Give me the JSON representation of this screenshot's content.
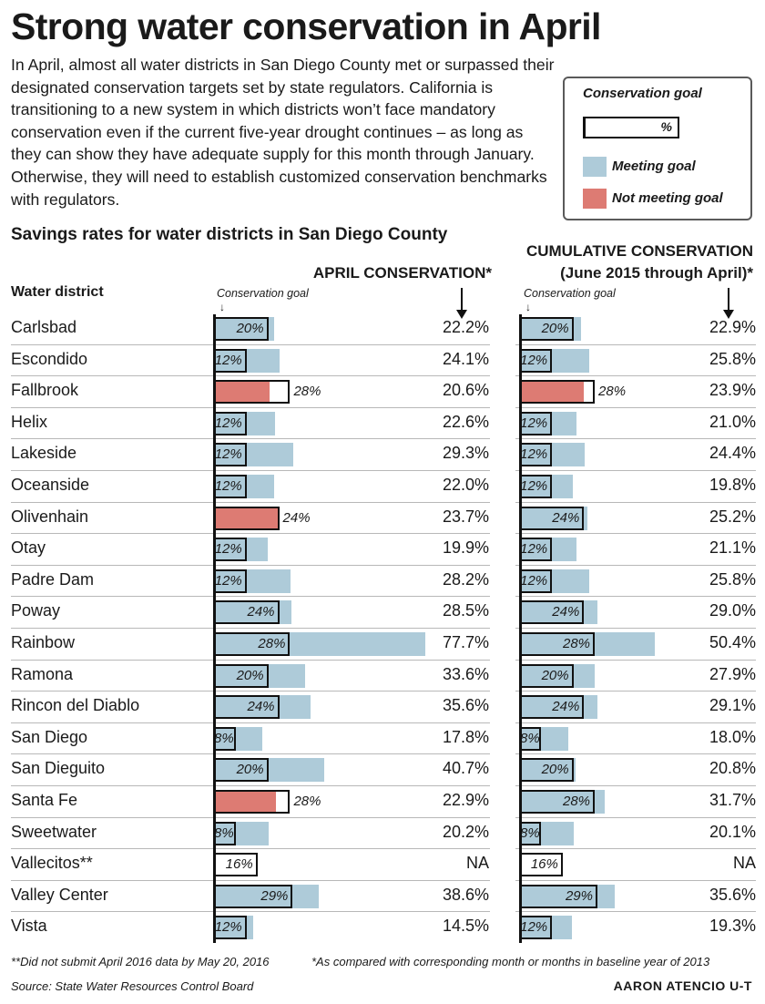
{
  "headline": "Strong water conservation in April",
  "intro": "In April, almost all water districts in San Diego County met or surpassed their designated conservation targets set by state regulators. California is transitioning to a new system in which districts won’t face mandatory conservation even if the current five-year drought continues – as long as they can show they have adequate supply for this month through January. Otherwise, they will need to establish customized conservation benchmarks with regulators.",
  "legend": {
    "title": "Conservation goal",
    "percent_sign": "%",
    "meeting": "Meeting goal",
    "not_meeting": "Not meeting goal"
  },
  "colors": {
    "meeting": "#aecbd9",
    "not_meeting": "#dd7b73",
    "outline": "#111111"
  },
  "subhead": "Savings rates for water districts in San Diego County",
  "district_header": "Water district",
  "april_header": "APRIL CONSERVATION*",
  "cumulative_header_1": "CUMULATIVE CONSERVATION",
  "cumulative_header_2": "(June 2015 through April)*",
  "goal_note": "Conservation goal",
  "footnote_1": "**Did not submit April 2016 data by May 20, 2016",
  "footnote_2": "*As compared with corresponding month or months in baseline year of 2013",
  "source": "Source: State Water Resources Control Board",
  "credit": "AARON ATENCIO U-T",
  "chart_data": {
    "type": "bar",
    "categories": [
      "Carlsbad",
      "Escondido",
      "Fallbrook",
      "Helix",
      "Lakeside",
      "Oceanside",
      "Olivenhain",
      "Otay",
      "Padre Dam",
      "Poway",
      "Rainbow",
      "Ramona",
      "Rincon del Diablo",
      "San Diego",
      "San Dieguito",
      "Santa Fe",
      "Sweetwater",
      "Vallecitos**",
      "Valley Center",
      "Vista"
    ],
    "goals": [
      20,
      12,
      28,
      12,
      12,
      12,
      24,
      12,
      12,
      24,
      28,
      20,
      24,
      8,
      20,
      28,
      8,
      16,
      29,
      12
    ],
    "goal_labels": [
      "20%",
      "12%",
      "28%",
      "12%",
      "12%",
      "12%",
      "24%",
      "12%",
      "12%",
      "24%",
      "28%",
      "20%",
      "24%",
      "8%",
      "20%",
      "28%",
      "8%",
      "16%",
      "29%",
      "12%"
    ],
    "series": [
      {
        "name": "APRIL CONSERVATION*",
        "values": [
          22.2,
          24.1,
          20.6,
          22.6,
          29.3,
          22.0,
          23.7,
          19.9,
          28.2,
          28.5,
          77.7,
          33.6,
          35.6,
          17.8,
          40.7,
          22.9,
          20.2,
          null,
          38.6,
          14.5
        ],
        "labels": [
          "22.2%",
          "24.1%",
          "20.6%",
          "22.6%",
          "29.3%",
          "22.0%",
          "23.7%",
          "19.9%",
          "28.2%",
          "28.5%",
          "77.7%",
          "33.6%",
          "35.6%",
          "17.8%",
          "40.7%",
          "22.9%",
          "20.2%",
          "NA",
          "38.6%",
          "14.5%"
        ]
      },
      {
        "name": "CUMULATIVE CONSERVATION (June 2015 through April)*",
        "values": [
          22.9,
          25.8,
          23.9,
          21.0,
          24.4,
          19.8,
          25.2,
          21.1,
          25.8,
          29.0,
          50.4,
          27.9,
          29.1,
          18.0,
          20.8,
          31.7,
          20.1,
          null,
          35.6,
          19.3
        ],
        "labels": [
          "22.9%",
          "25.8%",
          "23.9%",
          "21.0%",
          "24.4%",
          "19.8%",
          "25.2%",
          "21.1%",
          "25.8%",
          "29.0%",
          "50.4%",
          "27.9%",
          "29.1%",
          "18.0%",
          "20.8%",
          "31.7%",
          "20.1%",
          "NA",
          "35.6%",
          "19.3%"
        ]
      }
    ],
    "xlim": [
      0,
      80
    ]
  }
}
